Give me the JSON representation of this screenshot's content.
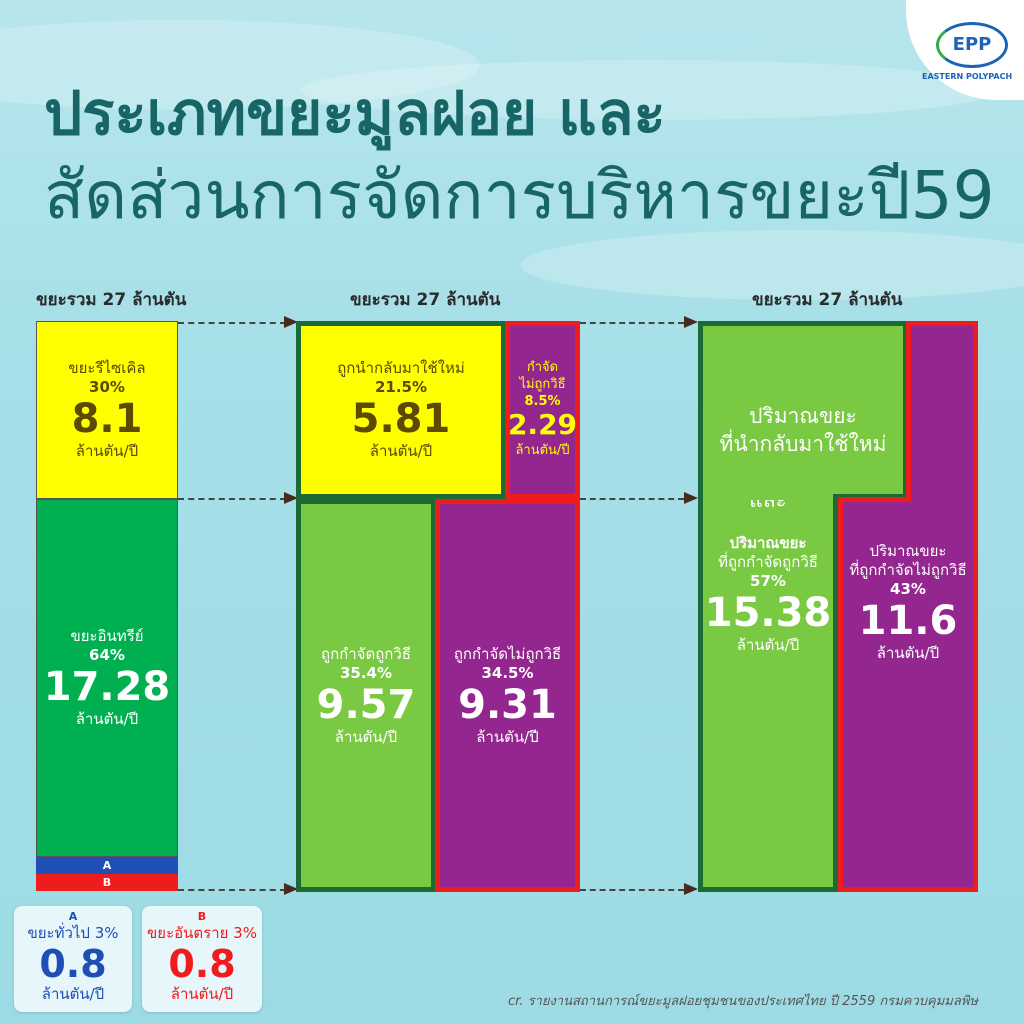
{
  "logo": {
    "mark": "EPP",
    "name": "EASTERN POLYPACH"
  },
  "title": {
    "line1": "ประเภทขยะมูลฝอย และ",
    "line2": "สัดส่วนการจัดการบริหารขยะปี59"
  },
  "col1": {
    "header": "ขยะรวม 27 ล้านตัน",
    "recycle": {
      "label": "ขยะรีไซเคิล",
      "pct": "30%",
      "value": "8.1",
      "unit": "ล้านตัน/ปี"
    },
    "organic": {
      "label": "ขยะอินทรีย์",
      "pct": "64%",
      "value": "17.28",
      "unit": "ล้านตัน/ปี"
    },
    "strip_a": "A",
    "strip_b": "B"
  },
  "col2": {
    "header": "ขยะรวม 27 ล้านตัน",
    "reused": {
      "label": "ถูกนำกลับมาใช้ใหม่",
      "pct": "21.5%",
      "value": "5.81",
      "unit": "ล้านตัน/ปี"
    },
    "improper_small": {
      "label1": "กำจัด",
      "label2": "ไม่ถูกวิธี",
      "pct": "8.5%",
      "value": "2.29",
      "unit": "ล้านตัน/ปี"
    },
    "proper": {
      "label": "ถูกกำจัดถูกวิธี",
      "pct": "35.4%",
      "value": "9.57",
      "unit": "ล้านตัน/ปี"
    },
    "improper": {
      "label": "ถูกกำจัดไม่ถูกวิธี",
      "pct": "34.5%",
      "value": "9.31",
      "unit": "ล้านตัน/ปี"
    }
  },
  "col3": {
    "header": "ขยะรวม 27 ล้านตัน",
    "green_top1": "ปริมาณขยะ",
    "green_top2": "ที่นำกลับมาใช้ใหม่",
    "green_top3": "และ",
    "green": {
      "label1": "ปริมาณขยะ",
      "label2": "ที่ถูกกำจัดถูกวิธี",
      "pct": "57%",
      "value": "15.38",
      "unit": "ล้านตัน/ปี"
    },
    "purple": {
      "label1": "ปริมาณขยะ",
      "label2": "ที่ถูกกำจัดไม่ถูกวิธี",
      "pct": "43%",
      "value": "11.6",
      "unit": "ล้านตัน/ปี"
    }
  },
  "legend": {
    "a": {
      "key": "A",
      "label": "ขยะทั่วไป 3%",
      "value": "0.8",
      "unit": "ล้านตัน/ปี"
    },
    "b": {
      "key": "B",
      "label": "ขยะอันตราย 3%",
      "value": "0.8",
      "unit": "ล้านตัน/ปี"
    }
  },
  "credit": "cr. รายงานสถานการณ์ขยะมูลฝอยชุมชนของประเทศไทย ปี 2559 กรมควบคุมมลพิษ",
  "colors": {
    "yellow": "#ffff00",
    "green": "#00b050",
    "lightgreen": "#7ac943",
    "purple": "#93278f",
    "darkgreen": "#1a6b35",
    "red": "#ee1c1c",
    "blue": "#1f4fb5",
    "title": "#176566"
  }
}
